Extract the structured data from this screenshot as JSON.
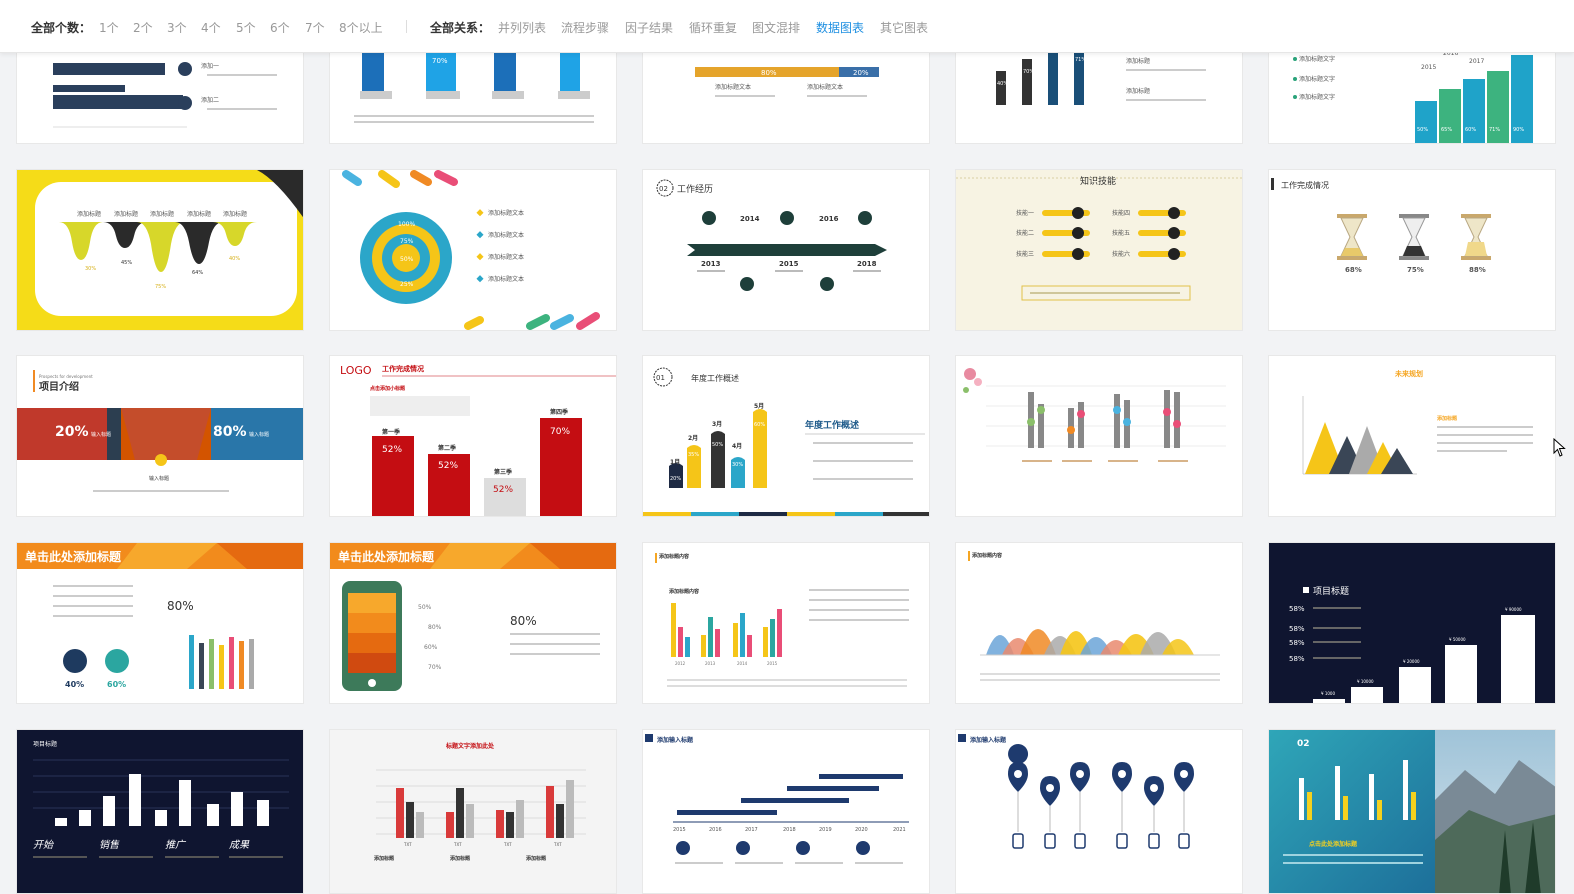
{
  "filters": {
    "count_label": "全部个数：",
    "count_options": [
      "1个",
      "2个",
      "3个",
      "4个",
      "5个",
      "6个",
      "7个",
      "8个以上"
    ],
    "relation_label": "全部关系：",
    "relation_options": [
      "并列列表",
      "流程步骤",
      "因子结果",
      "循环重复",
      "图文混排",
      "数据图表",
      "其它图表"
    ],
    "active_relation": "数据图表"
  },
  "cards": {
    "c21": {
      "labels": [
        "添加标题",
        "添加标题",
        "添加标题",
        "添加标题",
        "添加标题"
      ],
      "values": [
        "30%",
        "45%",
        "75%",
        "64%",
        "40%"
      ]
    },
    "c22": {
      "rings": [
        "100%",
        "75%",
        "50%",
        "25%"
      ],
      "items": [
        "添加标题文本",
        "添加标题文本",
        "添加标题文本",
        "添加标题文本"
      ]
    },
    "c23": {
      "title": "工作经历",
      "num": "02",
      "years_top": [
        "2014",
        "2016"
      ],
      "years_bottom": [
        "2013",
        "2015",
        "2018"
      ]
    },
    "c24": {
      "title": "知识技能",
      "left": [
        "技能一",
        "技能二",
        "技能三"
      ],
      "right": [
        "技能四",
        "技能五",
        "技能六"
      ]
    },
    "c25": {
      "title": "工作完成情况",
      "values": [
        "68%",
        "75%",
        "88%"
      ]
    },
    "c31": {
      "sub": "Prospects for development",
      "title": "项目介绍",
      "left_val": "20%",
      "right_val": "80%",
      "left_tag": "输入标题",
      "right_tag": "输入标题",
      "center": "输入标题"
    },
    "c32": {
      "logo": "LOGO",
      "title": "工作完成情况",
      "sub": "点击添加小标题",
      "quarters": [
        "第一季",
        "第二季",
        "第三季",
        "第四季"
      ],
      "values": [
        "52%",
        "52%",
        "52%",
        "70%"
      ]
    },
    "c33": {
      "num": "01",
      "title": "年度工作概述",
      "heading": "年度工作概述",
      "months": [
        "1月",
        "2月",
        "3月",
        "4月",
        "5月"
      ],
      "values": [
        "20%",
        "35%",
        "50%",
        "30%",
        "60%"
      ]
    },
    "c35": {
      "title": "未来规划",
      "sub": "添加标题"
    },
    "c41": {
      "title": "单击此处添加标题",
      "val": "80%",
      "p1": "40%",
      "p2": "60%"
    },
    "c42": {
      "title": "单击此处添加标题",
      "val": "80%",
      "rows": [
        "50%",
        "80%",
        "60%",
        "70%"
      ]
    },
    "c43": {
      "title": "添加标题内容",
      "sub": "添加标题内容",
      "years": [
        "2012",
        "2013",
        "2014",
        "2015"
      ]
    },
    "c44": {
      "title": "添加标题内容"
    },
    "c45": {
      "title": "项目标题",
      "rows": [
        "58%",
        "58%",
        "58%",
        "58%"
      ],
      "bars": [
        "¥ 1000",
        "¥ 10000",
        "¥ 20000",
        "¥ 50000",
        "¥ 90000"
      ]
    },
    "c51": {
      "title": "项目标题",
      "cats": [
        "开始",
        "销售",
        "推广",
        "成果"
      ]
    },
    "c52": {
      "title": "标题文字添加此处",
      "labels": [
        "TXT",
        "TXT",
        "TXT",
        "TXT"
      ],
      "sub": [
        "添加标题",
        "添加标题",
        "添加标题"
      ]
    },
    "c53": {
      "title": "添加输入标题",
      "years": [
        "2015",
        "2016",
        "2017",
        "2018",
        "2019",
        "2020",
        "2021"
      ]
    },
    "c54": {
      "title": "添加输入标题"
    },
    "c55": {
      "num": "02",
      "sub": "点击此处添加标题"
    },
    "c14": {
      "items": [
        "添加标题",
        "添加标题"
      ],
      "bars": [
        "40%",
        "70%",
        "71%"
      ]
    },
    "c15": {
      "items": [
        "添加标题文字",
        "添加标题文字",
        "添加标题文字"
      ],
      "years": [
        "2015",
        "2016",
        "2017"
      ],
      "values": [
        "50%",
        "65%",
        "60%",
        "71%",
        "90%"
      ]
    },
    "c12": {
      "value": "70%"
    },
    "c13": {
      "values": [
        "80%",
        "20%"
      ],
      "items": [
        "添加标题文本",
        "添加标题文本"
      ]
    },
    "c11": {
      "items": [
        "添加一",
        "添加二"
      ]
    }
  },
  "colors": {
    "active": "#1e8fe1",
    "yellow": "#f5c518",
    "navy": "#1a2e4a",
    "red": "#c40d12",
    "orange": "#f28b1c"
  }
}
